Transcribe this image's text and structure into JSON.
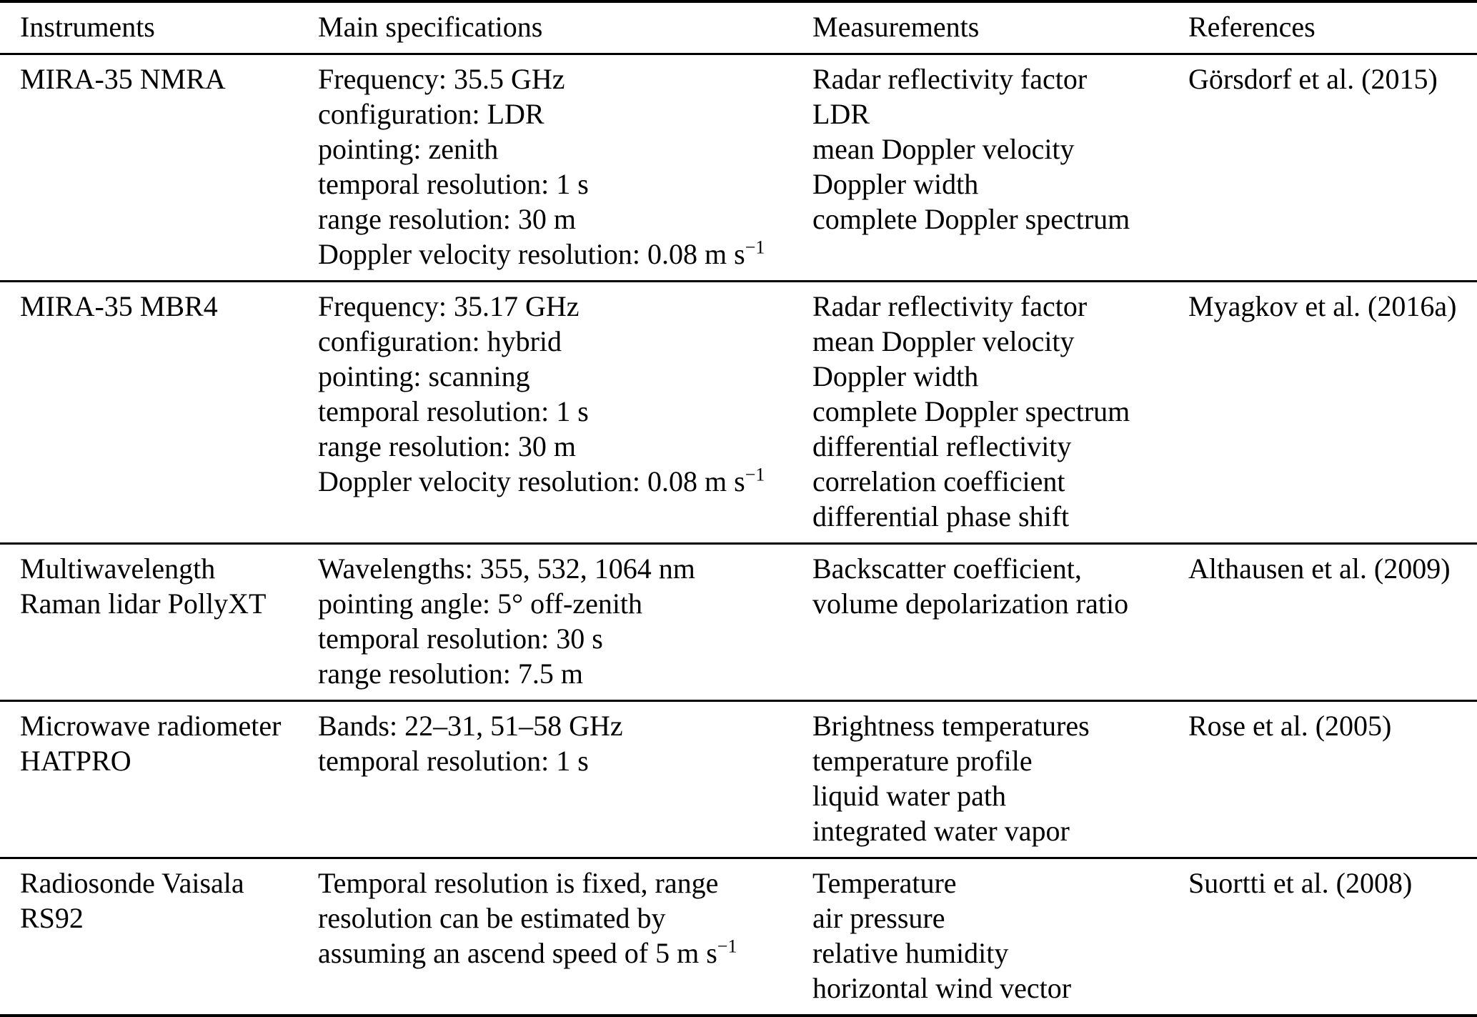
{
  "page": {
    "background_color": "#ffffff",
    "text_color": "#000000",
    "rule_color": "#000000"
  },
  "table": {
    "headers": [
      "Instruments",
      "Main specifications",
      "Measurements",
      "References"
    ],
    "rows": [
      {
        "instrument": [
          "MIRA-35 NMRA"
        ],
        "specifications": [
          "Frequency: 35.5 GHz",
          "configuration: LDR",
          "pointing: zenith",
          "temporal resolution: 1 s",
          "range resolution: 30 m",
          [
            {
              "t": "Doppler velocity resolution: 0.08 m s"
            },
            {
              "sup": "−1"
            }
          ]
        ],
        "measurements": [
          "Radar reflectivity factor",
          "LDR",
          "mean Doppler velocity",
          "Doppler width",
          "complete Doppler spectrum"
        ],
        "reference": "Görsdorf et al. (2015)"
      },
      {
        "instrument": [
          "MIRA-35 MBR4"
        ],
        "specifications": [
          "Frequency: 35.17 GHz",
          "configuration: hybrid",
          "pointing: scanning",
          "temporal resolution: 1 s",
          "range resolution: 30 m",
          [
            {
              "t": "Doppler velocity resolution: 0.08 m s"
            },
            {
              "sup": "−1"
            }
          ]
        ],
        "measurements": [
          "Radar reflectivity factor",
          "mean Doppler velocity",
          "Doppler width",
          "complete Doppler spectrum",
          "differential reflectivity",
          "correlation coefficient",
          "differential phase shift"
        ],
        "reference": "Myagkov et al. (2016a)"
      },
      {
        "instrument": [
          "Multiwavelength",
          "Raman lidar PollyXT"
        ],
        "specifications": [
          "Wavelengths: 355, 532, 1064 nm",
          "pointing angle: 5° off-zenith",
          "temporal resolution: 30 s",
          "range resolution: 7.5 m"
        ],
        "measurements": [
          "Backscatter coefficient,",
          "volume depolarization ratio"
        ],
        "reference": "Althausen et al. (2009)"
      },
      {
        "instrument": [
          "Microwave radiometer",
          "HATPRO"
        ],
        "specifications": [
          "Bands: 22–31, 51–58 GHz",
          "temporal resolution: 1 s"
        ],
        "measurements": [
          "Brightness temperatures",
          "temperature profile",
          "liquid water path",
          "integrated water vapor"
        ],
        "reference": "Rose et al. (2005)"
      },
      {
        "instrument": [
          "Radiosonde Vaisala",
          "RS92"
        ],
        "specifications": [
          "Temporal resolution is fixed, range",
          "resolution can be estimated by",
          [
            {
              "t": "assuming an ascend speed of 5 m s"
            },
            {
              "sup": "−1"
            }
          ]
        ],
        "measurements": [
          "Temperature",
          "air pressure",
          "relative humidity",
          "horizontal wind vector"
        ],
        "reference": "Suortti et al. (2008)"
      }
    ]
  }
}
